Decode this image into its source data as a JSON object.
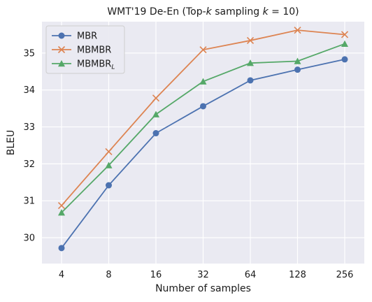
{
  "chart_data": {
    "type": "line",
    "title_parts": [
      "WMT'19 De-En (Top-",
      "k",
      " sampling ",
      "k",
      " = 10)"
    ],
    "xlabel": "Number of samples",
    "ylabel": "BLEU",
    "x_scale": "log2",
    "categories": [
      "4",
      "8",
      "16",
      "32",
      "64",
      "128",
      "256"
    ],
    "x": [
      4,
      8,
      16,
      32,
      64,
      128,
      256
    ],
    "ylim": [
      29.3,
      35.85
    ],
    "yticks": [
      30,
      31,
      32,
      33,
      34,
      35
    ],
    "grid": true,
    "legend_position": "top-left",
    "series": [
      {
        "name": "MBR",
        "name_sub": "",
        "color": "#4c72b0",
        "marker": "circle",
        "values": [
          29.72,
          31.42,
          32.83,
          33.56,
          34.26,
          34.55,
          34.83
        ]
      },
      {
        "name": "MBMBR",
        "name_sub": "",
        "color": "#dd8452",
        "marker": "x",
        "values": [
          30.87,
          32.33,
          33.78,
          35.09,
          35.34,
          35.62,
          35.5
        ]
      },
      {
        "name": "MBMBR",
        "name_sub": "L",
        "color": "#55a868",
        "marker": "triangle",
        "values": [
          30.68,
          31.96,
          33.34,
          34.23,
          34.73,
          34.78,
          35.25
        ]
      }
    ]
  }
}
